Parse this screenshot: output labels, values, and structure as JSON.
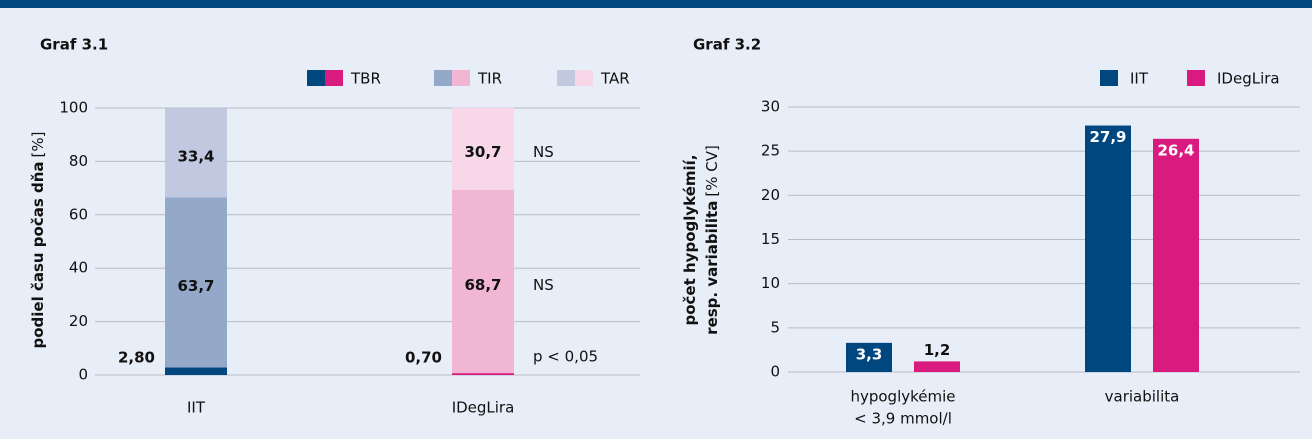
{
  "chart_data": [
    {
      "type": "stacked_bar",
      "title": "Graf 3.1",
      "ylabel": "podiel času počas dňa",
      "ylabel_unit": "[%]",
      "categories": [
        "IIT",
        "IDegLira"
      ],
      "series": [
        {
          "name": "TBR",
          "colors": [
            "#00467f",
            "#d91a7f"
          ],
          "values": [
            2.8,
            0.7
          ],
          "value_labels": [
            "2,80",
            "0,70"
          ]
        },
        {
          "name": "TIR",
          "colors": [
            "#94a8c9",
            "#f0b6d4"
          ],
          "values": [
            63.7,
            68.7
          ],
          "value_labels": [
            "63,7",
            "68,7"
          ]
        },
        {
          "name": "TAR",
          "colors": [
            "#c0c9df",
            "#f8d7e8"
          ],
          "values": [
            33.4,
            30.7
          ],
          "value_labels": [
            "33,4",
            "30,7"
          ]
        }
      ],
      "annotations": [
        "p < 0,05",
        "NS",
        "NS"
      ],
      "ylim": [
        0,
        100
      ],
      "yticks": [
        0,
        20,
        40,
        60,
        80,
        100
      ],
      "grid": true
    },
    {
      "type": "bar",
      "title": "Graf 3.2",
      "ylabel": [
        "počet hypoglykémií,",
        "resp. variabilita"
      ],
      "ylabel_unit": "[% CV]",
      "categories": [
        [
          "hypoglykémie",
          "< 3,9 mmol/l"
        ],
        [
          "variabilita"
        ]
      ],
      "series": [
        {
          "name": "IIT",
          "color": "#00467f",
          "values": [
            3.3,
            27.9
          ],
          "value_labels": [
            "3,3",
            "27,9"
          ]
        },
        {
          "name": "IDegLira",
          "color": "#d91a7f",
          "values": [
            1.2,
            26.4
          ],
          "value_labels": [
            "1,2",
            "26,4"
          ]
        }
      ],
      "ylim": [
        0,
        30
      ],
      "yticks": [
        0,
        5,
        10,
        15,
        20,
        25,
        30
      ],
      "grid": true
    }
  ]
}
